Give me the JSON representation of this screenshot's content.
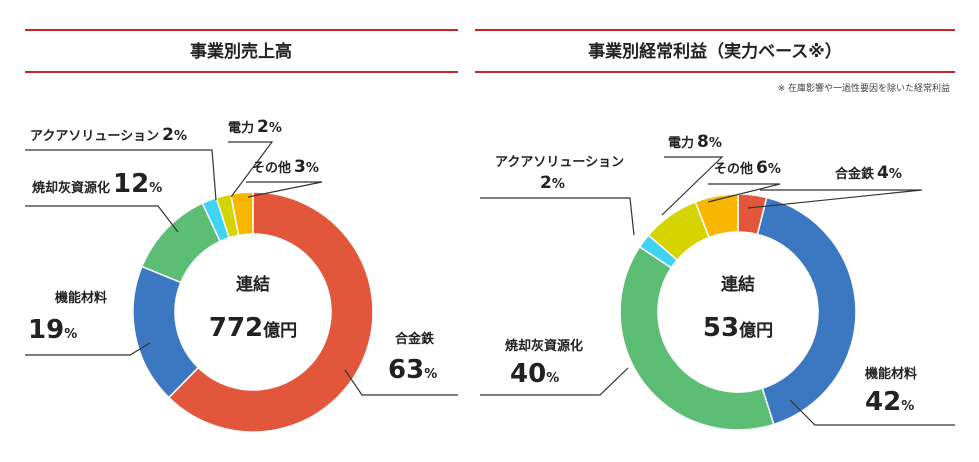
{
  "chart_data": [
    {
      "type": "pie",
      "title": "事業別売上高",
      "center_label": "連結",
      "center_value": 772,
      "center_unit": "億円",
      "unit": "%",
      "categories": [
        "合金鉄",
        "機能材料",
        "焼却灰資源化",
        "アクアソリューション",
        "電力",
        "その他"
      ],
      "values": [
        63,
        19,
        12,
        2,
        2,
        3
      ],
      "colors": [
        "#e2563c",
        "#3b78c1",
        "#5cbd74",
        "#3ed4f2",
        "#d5d400",
        "#f8b600"
      ]
    },
    {
      "type": "pie",
      "title": "事業別経常利益（実力ベース※）",
      "note": "※ 在庫影響や一過性要因を除いた経常利益",
      "center_label": "連結",
      "center_value": 53,
      "center_unit": "億円",
      "unit": "%",
      "categories": [
        "合金鉄",
        "機能材料",
        "焼却灰資源化",
        "アクアソリューション",
        "電力",
        "その他"
      ],
      "values": [
        4,
        42,
        40,
        2,
        8,
        6
      ],
      "colors": [
        "#e2563c",
        "#3b78c1",
        "#5cbd74",
        "#3ed4f2",
        "#d5d400",
        "#f8b600"
      ]
    }
  ]
}
